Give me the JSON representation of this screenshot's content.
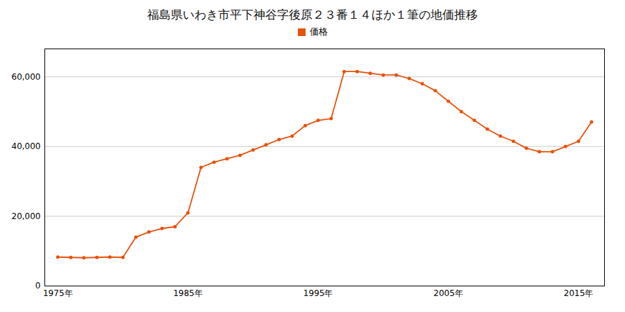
{
  "chart_data": {
    "type": "line",
    "title": "福島県いわき市平下神谷字後原２３番１４ほか１筆の地価推移",
    "x": [
      1975,
      1976,
      1977,
      1978,
      1979,
      1980,
      1981,
      1982,
      1983,
      1984,
      1985,
      1986,
      1987,
      1988,
      1989,
      1990,
      1991,
      1992,
      1993,
      1994,
      1995,
      1996,
      1997,
      1998,
      1999,
      2000,
      2001,
      2002,
      2003,
      2004,
      2005,
      2006,
      2007,
      2008,
      2009,
      2010,
      2011,
      2012,
      2013,
      2014,
      2015,
      2016
    ],
    "series": [
      {
        "name": "価格",
        "color": "#E8510A",
        "marker": "circle",
        "values": [
          8300,
          8200,
          8100,
          8200,
          8300,
          8200,
          14000,
          15500,
          16500,
          17000,
          21000,
          34000,
          35500,
          36500,
          37500,
          39000,
          40500,
          42000,
          43000,
          46000,
          47500,
          48000,
          61500,
          61500,
          61000,
          60500,
          60500,
          59500,
          58000,
          56000,
          53000,
          50000,
          47500,
          45000,
          43000,
          41500,
          39500,
          38500,
          38500,
          40000,
          41500,
          47000
        ]
      }
    ],
    "xlim": [
      1974,
      2017
    ],
    "xticks": [
      {
        "value": 1975,
        "label": "1975年"
      },
      {
        "value": 1985,
        "label": "1985年"
      },
      {
        "value": 1995,
        "label": "1995年"
      },
      {
        "value": 2005,
        "label": "2005年"
      },
      {
        "value": 2015,
        "label": "2015年"
      }
    ],
    "ylim": [
      0,
      68000
    ],
    "yticks": [
      0,
      {
        "value": 20000,
        "label": "20,000"
      },
      {
        "value": 40000,
        "label": "40,000"
      },
      {
        "value": 60000,
        "label": "60,000"
      }
    ],
    "grid": true,
    "legend": "top"
  }
}
